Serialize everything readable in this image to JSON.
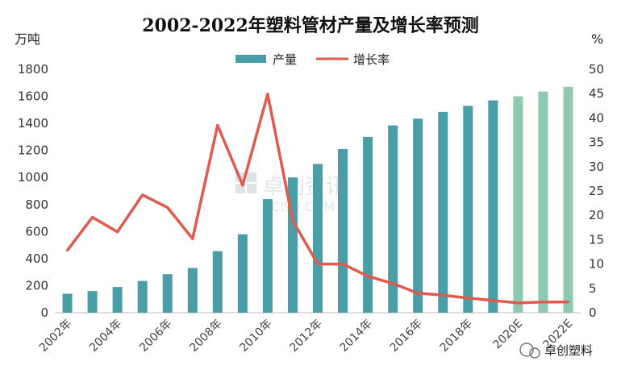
{
  "chart_data": {
    "type": "bar",
    "title": "2002-2022年塑料管材产量及增长率预测",
    "ylabel_left": "万吨",
    "ylabel_right": "%",
    "ylim_left": [
      0,
      1800
    ],
    "yticks_left": [
      0,
      200,
      400,
      600,
      800,
      1000,
      1200,
      1400,
      1600,
      1800
    ],
    "ylim_right": [
      0,
      50
    ],
    "yticks_right": [
      0,
      5,
      10,
      15,
      20,
      25,
      30,
      35,
      40,
      45,
      50
    ],
    "categories": [
      "2002年",
      "2003年",
      "2004年",
      "2005年",
      "2006年",
      "2007年",
      "2008年",
      "2009年",
      "2010年",
      "2011年",
      "2012年",
      "2013年",
      "2014年",
      "2015年",
      "2016年",
      "2017年",
      "2018年",
      "2019年",
      "2020E",
      "2021E",
      "2022E"
    ],
    "x_tick_labels": [
      "2002年",
      "",
      "2004年",
      "",
      "2006年",
      "",
      "2008年",
      "",
      "2010年",
      "",
      "2012年",
      "",
      "2014年",
      "",
      "2016年",
      "",
      "2018年",
      "",
      "2020E",
      "",
      "2022E"
    ],
    "forecast_start_index": 18,
    "series": [
      {
        "name": "产量",
        "type": "bar",
        "axis": "left",
        "color": "#4a9ea7",
        "forecast_color": "#8ecab0",
        "values": [
          140,
          160,
          190,
          235,
          285,
          330,
          455,
          580,
          840,
          1000,
          1100,
          1210,
          1300,
          1385,
          1435,
          1485,
          1530,
          1570,
          1600,
          1635,
          1670
        ]
      },
      {
        "name": "增长率",
        "type": "line",
        "axis": "right",
        "color": "#e05a4e",
        "values": [
          12.8,
          19.6,
          16.6,
          24.2,
          21.6,
          15.2,
          38.5,
          26.2,
          44.9,
          18.9,
          10.0,
          10.0,
          7.5,
          6.0,
          4.0,
          3.6,
          3.0,
          2.5,
          2.0,
          2.2,
          2.2
        ]
      }
    ],
    "legend_position": "top-center",
    "grid": false
  },
  "watermark": {
    "line1": "卓创资讯",
    "line2": "SCI99.COM"
  },
  "logo": {
    "text": "卓创塑料"
  }
}
